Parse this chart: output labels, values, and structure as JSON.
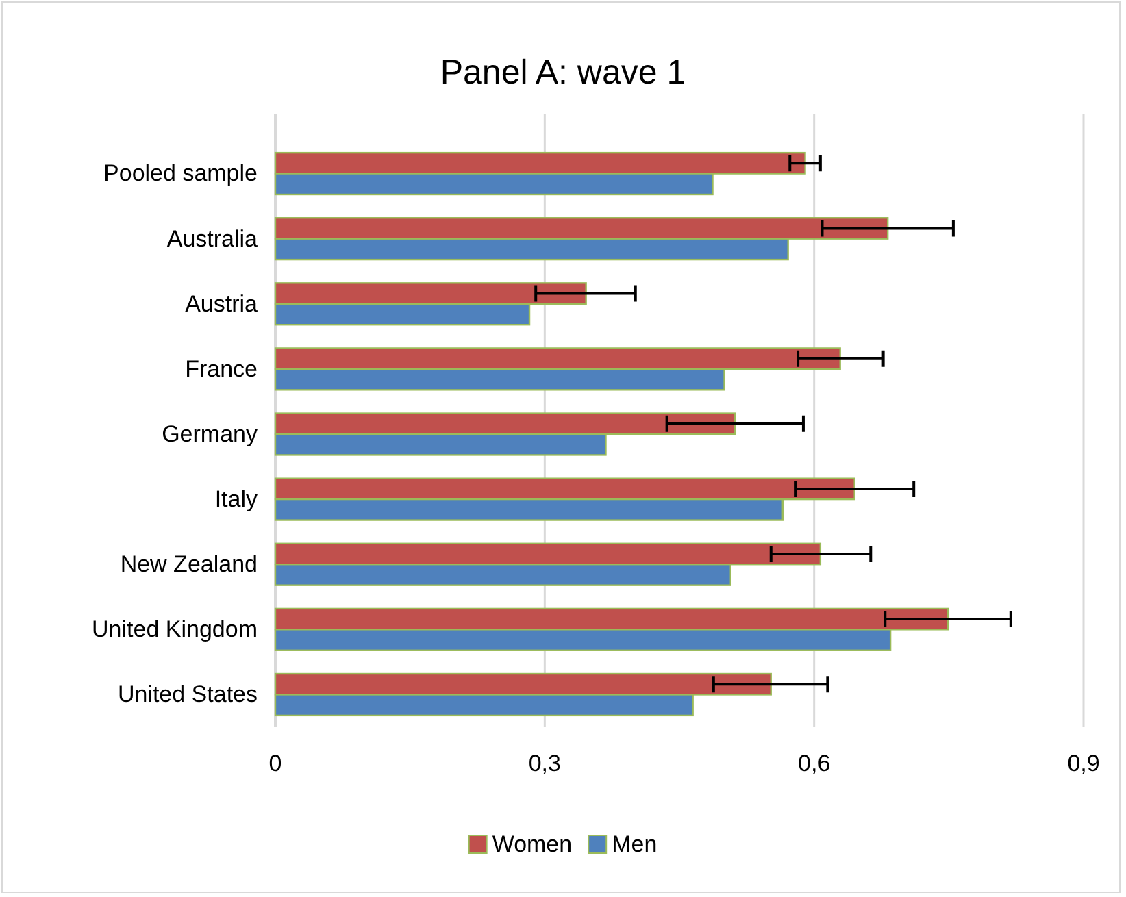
{
  "chart_data": {
    "type": "bar",
    "orientation": "horizontal",
    "title": "Panel A: wave 1",
    "categories": [
      "Pooled sample",
      "Australia",
      "Austria",
      "France",
      "Germany",
      "Italy",
      "New Zealand",
      "United Kingdom",
      "United States"
    ],
    "series": [
      {
        "name": "Women",
        "color": "#c0504d",
        "values": [
          0.59,
          0.682,
          0.346,
          0.629,
          0.512,
          0.645,
          0.607,
          0.749,
          0.552
        ],
        "errors": [
          [
            0.573,
            0.607
          ],
          [
            0.609,
            0.755
          ],
          [
            0.29,
            0.401
          ],
          [
            0.582,
            0.677
          ],
          [
            0.436,
            0.588
          ],
          [
            0.579,
            0.711
          ],
          [
            0.552,
            0.663
          ],
          [
            0.679,
            0.819
          ],
          [
            0.488,
            0.615
          ]
        ]
      },
      {
        "name": "Men",
        "color": "#4f81bd",
        "values": [
          0.487,
          0.571,
          0.283,
          0.5,
          0.368,
          0.565,
          0.507,
          0.685,
          0.465
        ]
      }
    ],
    "xlim": [
      0,
      0.9
    ],
    "xticks": [
      0,
      {
        "value": 0.3,
        "label": "0,3"
      },
      {
        "value": 0.6,
        "label": "0,6"
      },
      {
        "value": 0.9,
        "label": "0,9"
      }
    ],
    "grid": "x",
    "legend": "bottom"
  }
}
